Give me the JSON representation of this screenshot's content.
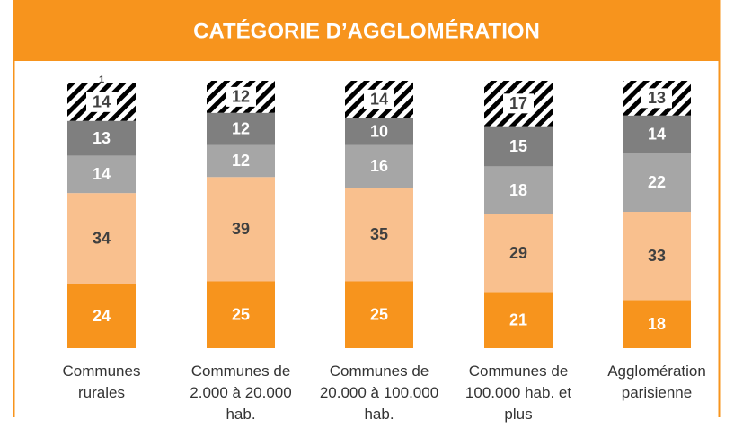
{
  "chart_data": {
    "type": "stacked_bar",
    "title": "CATÉGORIE D’AGGLOMÉRATION",
    "categories": [
      "Communes\nrurales",
      "Communes de\n2.000 à 20.000\nhab.",
      "Communes de\n20.000 à 100.000\nhab.",
      "Communes de\n100.000 hab. et\nplus",
      "Agglomération\nparisienne"
    ],
    "series": [
      {
        "color": "#f7941d",
        "label_color": "#ffffff",
        "values": [
          24,
          25,
          25,
          21,
          18
        ]
      },
      {
        "color": "#f9c08e",
        "label_color": "#404040",
        "values": [
          34,
          39,
          35,
          29,
          33
        ]
      },
      {
        "color": "#a6a6a6",
        "label_color": "#ffffff",
        "values": [
          14,
          12,
          16,
          18,
          22
        ]
      },
      {
        "color": "#7f7f7f",
        "label_color": "#ffffff",
        "values": [
          13,
          12,
          10,
          15,
          14
        ]
      },
      {
        "color": "#ffffff",
        "pattern": "hatch",
        "label_color": "#404040",
        "values": [
          14,
          12,
          14,
          17,
          13
        ]
      },
      {
        "color": "#ffffff",
        "label_color": "#404040",
        "values": [
          1,
          null,
          null,
          null,
          null
        ]
      }
    ],
    "ylim": [
      0,
      100
    ]
  }
}
